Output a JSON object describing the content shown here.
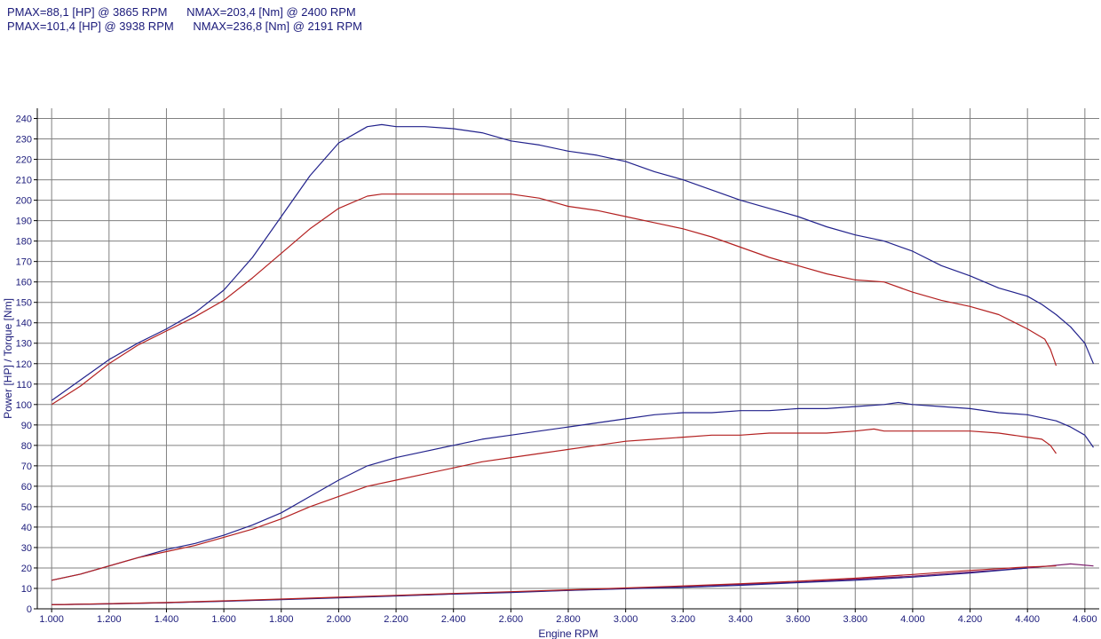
{
  "header": {
    "line1": "PMAX=88,1 [HP] @ 3865 RPM      NMAX=203,4 [Nm] @ 2400 RPM",
    "line2": "PMAX=101,4 [HP] @ 3938 RPM      NMAX=236,8 [Nm] @ 2191 RPM"
  },
  "chart_data": {
    "type": "line",
    "xlabel": "Engine RPM",
    "ylabel": "Power [HP] / Torque [Nm]",
    "xlim": [
      950,
      4650
    ],
    "ylim": [
      0,
      245
    ],
    "x_ticks": [
      1000,
      1200,
      1400,
      1600,
      1800,
      2000,
      2200,
      2400,
      2600,
      2800,
      3000,
      3200,
      3400,
      3600,
      3800,
      4000,
      4200,
      4400,
      4600
    ],
    "x_tick_labels": [
      "1.000",
      "1.200",
      "1.400",
      "1.600",
      "1.800",
      "2.000",
      "2.200",
      "2.400",
      "2.600",
      "2.800",
      "3.000",
      "3.200",
      "3.400",
      "3.600",
      "3.800",
      "4.000",
      "4.200",
      "4.400",
      "4.600"
    ],
    "y_ticks": [
      0,
      10,
      20,
      30,
      40,
      50,
      60,
      70,
      80,
      90,
      100,
      110,
      120,
      130,
      140,
      150,
      160,
      170,
      180,
      190,
      200,
      210,
      220,
      230,
      240
    ],
    "grid": true,
    "colors": {
      "blue": "#22228c",
      "red": "#b32020",
      "purple": "#7a1a6a"
    },
    "series": [
      {
        "color": "blue",
        "x": [
          1000,
          1100,
          1200,
          1300,
          1400,
          1500,
          1600,
          1700,
          1800,
          1900,
          2000,
          2100,
          2150,
          2200,
          2300,
          2400,
          2500,
          2600,
          2700,
          2800,
          2900,
          3000,
          3100,
          3200,
          3300,
          3400,
          3500,
          3600,
          3700,
          3800,
          3900,
          4000,
          4100,
          4200,
          4300,
          4400,
          4450,
          4500,
          4550,
          4600,
          4630
        ],
        "values": [
          102,
          112,
          122,
          130,
          137,
          145,
          156,
          172,
          192,
          212,
          228,
          236,
          237,
          236,
          236,
          235,
          233,
          229,
          227,
          224,
          222,
          219,
          214,
          210,
          205,
          200,
          196,
          192,
          187,
          183,
          180,
          175,
          168,
          163,
          157,
          153,
          149,
          144,
          138,
          130,
          120
        ]
      },
      {
        "color": "red",
        "x": [
          1000,
          1100,
          1200,
          1300,
          1400,
          1500,
          1600,
          1700,
          1800,
          1900,
          2000,
          2100,
          2150,
          2200,
          2300,
          2400,
          2500,
          2600,
          2700,
          2800,
          2900,
          3000,
          3100,
          3200,
          3300,
          3400,
          3500,
          3600,
          3700,
          3800,
          3900,
          4000,
          4100,
          4200,
          4300,
          4400,
          4460,
          4480,
          4500
        ],
        "values": [
          100,
          109,
          120,
          129,
          136,
          143,
          151,
          162,
          174,
          186,
          196,
          202,
          203,
          203,
          203,
          203,
          203,
          203,
          201,
          197,
          195,
          192,
          189,
          186,
          182,
          177,
          172,
          168,
          164,
          161,
          160,
          155,
          151,
          148,
          144,
          137,
          132,
          127,
          119
        ]
      },
      {
        "color": "blue",
        "x": [
          1000,
          1100,
          1200,
          1300,
          1400,
          1500,
          1600,
          1700,
          1800,
          1900,
          2000,
          2100,
          2200,
          2300,
          2400,
          2500,
          2600,
          2700,
          2800,
          2900,
          3000,
          3100,
          3200,
          3300,
          3400,
          3500,
          3600,
          3700,
          3800,
          3900,
          3950,
          4000,
          4100,
          4200,
          4300,
          4400,
          4500,
          4550,
          4600,
          4630
        ],
        "values": [
          14,
          17,
          21,
          25,
          29,
          32,
          36,
          41,
          47,
          55,
          63,
          70,
          74,
          77,
          80,
          83,
          85,
          87,
          89,
          91,
          93,
          95,
          96,
          96,
          97,
          97,
          98,
          98,
          99,
          100,
          101,
          100,
          99,
          98,
          96,
          95,
          92,
          89,
          85,
          79
        ]
      },
      {
        "color": "red",
        "x": [
          1000,
          1100,
          1200,
          1300,
          1400,
          1500,
          1600,
          1700,
          1800,
          1900,
          2000,
          2100,
          2200,
          2300,
          2400,
          2500,
          2600,
          2700,
          2800,
          2900,
          3000,
          3100,
          3200,
          3300,
          3400,
          3500,
          3600,
          3700,
          3800,
          3865,
          3900,
          4000,
          4100,
          4200,
          4300,
          4400,
          4450,
          4480,
          4500
        ],
        "values": [
          14,
          17,
          21,
          25,
          28,
          31,
          35,
          39,
          44,
          50,
          55,
          60,
          63,
          66,
          69,
          72,
          74,
          76,
          78,
          80,
          82,
          83,
          84,
          85,
          85,
          86,
          86,
          86,
          87,
          88,
          87,
          87,
          87,
          87,
          86,
          84,
          83,
          80,
          76
        ]
      },
      {
        "color": "purple",
        "x": [
          1000,
          1200,
          1400,
          1600,
          1800,
          2000,
          2200,
          2400,
          2600,
          2800,
          3000,
          3200,
          3400,
          3600,
          3800,
          4000,
          4200,
          4400,
          4550,
          4630
        ],
        "values": [
          2,
          2.5,
          3,
          3.8,
          4.6,
          5.5,
          6.4,
          7.3,
          8.2,
          9.1,
          10,
          11,
          12,
          13,
          14.5,
          16,
          18,
          20,
          22,
          21
        ]
      },
      {
        "color": "blue",
        "x": [
          1000,
          1200,
          1400,
          1600,
          1800,
          2000,
          2200,
          2400,
          2600,
          2800,
          3000,
          3200,
          3400,
          3600,
          3800,
          4000,
          4200,
          4400
        ],
        "values": [
          2,
          2.4,
          3,
          3.7,
          4.5,
          5.4,
          6.3,
          7.2,
          8,
          9,
          9.8,
          10.5,
          11.5,
          12.8,
          14,
          15.5,
          17.5,
          20
        ]
      },
      {
        "color": "red",
        "x": [
          1000,
          1200,
          1400,
          1600,
          1800,
          2000,
          2200,
          2400,
          2600,
          2800,
          3000,
          3200,
          3400,
          3600,
          3800,
          4000,
          4200,
          4400,
          4500
        ],
        "values": [
          2,
          2.5,
          3.1,
          3.9,
          4.8,
          5.7,
          6.6,
          7.5,
          8.4,
          9.3,
          10.2,
          11.2,
          12.3,
          13.5,
          15,
          16.8,
          18.8,
          20.5,
          21
        ]
      }
    ]
  }
}
